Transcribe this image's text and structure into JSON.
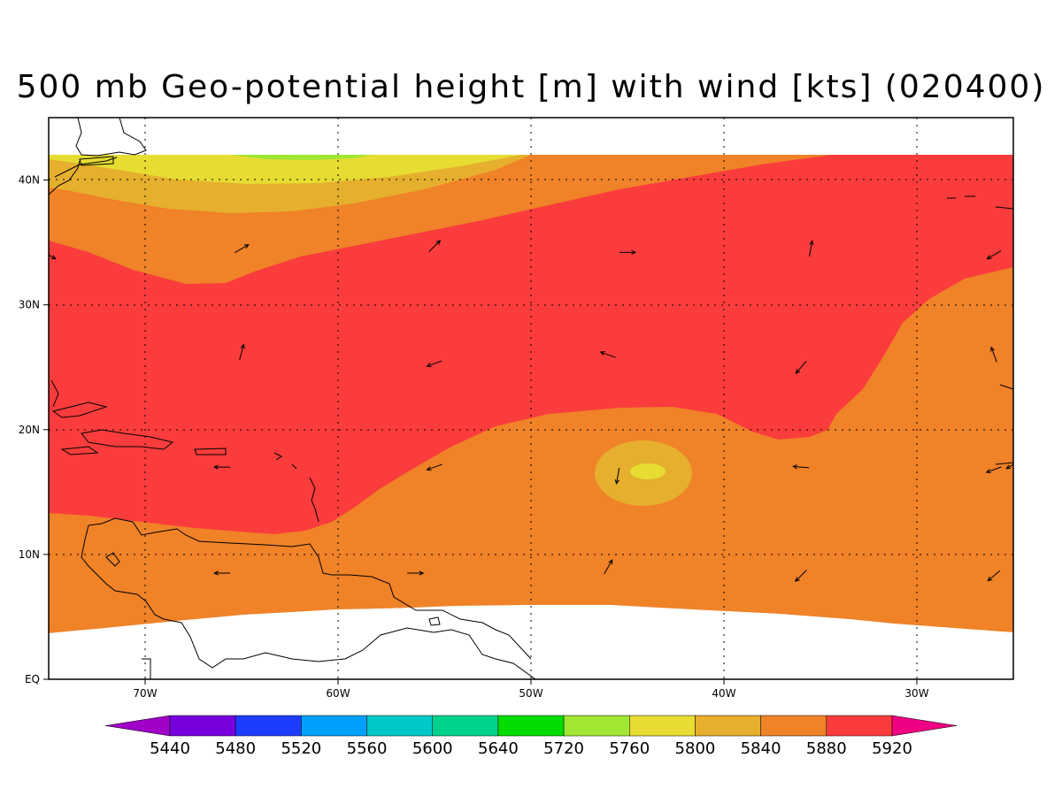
{
  "title": "500 mb Geo-potential height [m] with wind [kts] (020400)",
  "map": {
    "x_ticks": [
      {
        "lon": -70,
        "label": "70W"
      },
      {
        "lon": -60,
        "label": "60W"
      },
      {
        "lon": -50,
        "label": "50W"
      },
      {
        "lon": -40,
        "label": "40W"
      },
      {
        "lon": -30,
        "label": "30W"
      }
    ],
    "y_ticks": [
      {
        "lat": 40,
        "label": "40N"
      },
      {
        "lat": 30,
        "label": "30N"
      },
      {
        "lat": 20,
        "label": "20N"
      },
      {
        "lat": 10,
        "label": "10N"
      },
      {
        "lat": 0,
        "label": "EQ"
      }
    ],
    "lon_range": [
      -75,
      -25
    ],
    "lat_range": [
      0,
      45
    ],
    "grid": true
  },
  "colorbar": {
    "levels": [
      "5440",
      "5480",
      "5520",
      "5560",
      "5600",
      "5640",
      "5720",
      "5760",
      "5800",
      "5840",
      "5880",
      "5920"
    ],
    "colors": [
      "#a000c8",
      "#7800dc",
      "#1e3cff",
      "#00a0ff",
      "#00c8c8",
      "#00d28c",
      "#00dc00",
      "#a0e632",
      "#e6dc32",
      "#e6af2d",
      "#f08228",
      "#fa3c3c",
      "#f00082"
    ]
  },
  "wind_vectors": [
    {
      "lon": -65,
      "lat": 34.5,
      "dir": 60
    },
    {
      "lon": -55,
      "lat": 34.7,
      "dir": 45
    },
    {
      "lon": -45,
      "lat": 34.2,
      "dir": 90
    },
    {
      "lon": -35.5,
      "lat": 34.5,
      "dir": 10
    },
    {
      "lon": -26,
      "lat": 34,
      "dir": 240
    },
    {
      "lon": -75,
      "lat": 34,
      "dir": 120
    },
    {
      "lon": -65,
      "lat": 26.2,
      "dir": 15
    },
    {
      "lon": -55,
      "lat": 25.3,
      "dir": 250
    },
    {
      "lon": -46,
      "lat": 26,
      "dir": 290
    },
    {
      "lon": -36,
      "lat": 25,
      "dir": 220
    },
    {
      "lon": -26,
      "lat": 26,
      "dir": 340
    },
    {
      "lon": -66,
      "lat": 17,
      "dir": 270
    },
    {
      "lon": -55,
      "lat": 17,
      "dir": 250
    },
    {
      "lon": -45.5,
      "lat": 16.3,
      "dir": 190
    },
    {
      "lon": -36,
      "lat": 17,
      "dir": 275
    },
    {
      "lon": -26,
      "lat": 16.8,
      "dir": 250
    },
    {
      "lon": -25,
      "lat": 17.2,
      "dir": 240
    },
    {
      "lon": -66,
      "lat": 8.5,
      "dir": 270
    },
    {
      "lon": -56,
      "lat": 8.5,
      "dir": 90
    },
    {
      "lon": -46,
      "lat": 9,
      "dir": 30
    },
    {
      "lon": -36,
      "lat": 8.3,
      "dir": 225
    },
    {
      "lon": -26,
      "lat": 8.3,
      "dir": 230
    }
  ]
}
